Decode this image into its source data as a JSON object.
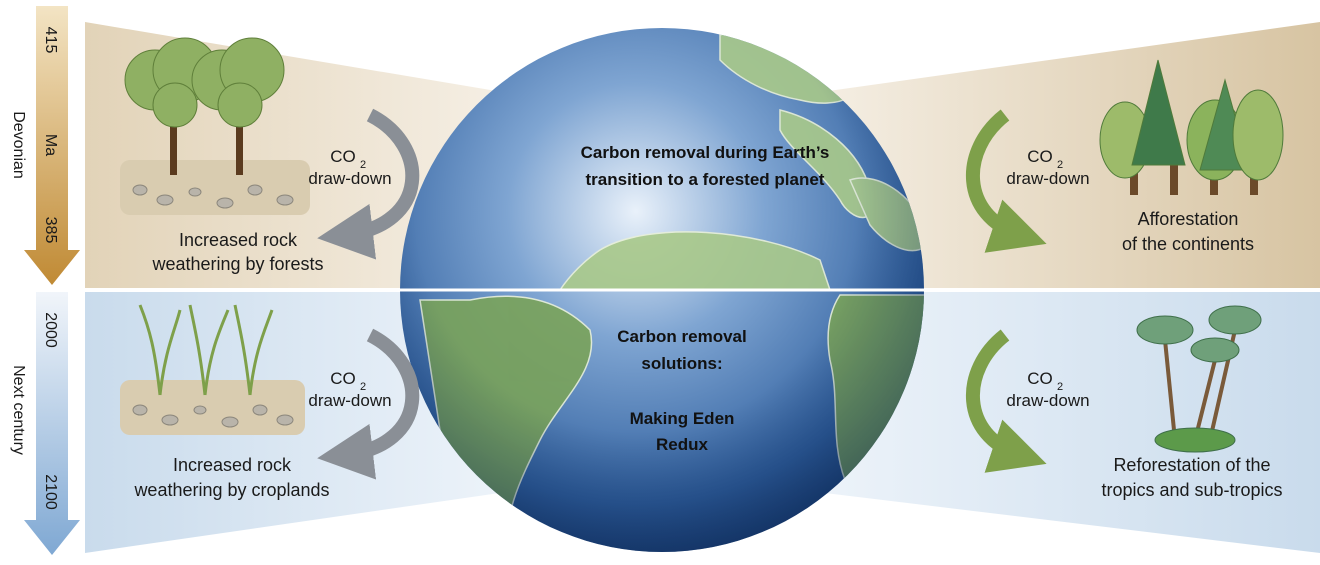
{
  "eras": [
    {
      "name": "Devonian",
      "start": "415",
      "unit": "Ma",
      "end": "385"
    },
    {
      "name": "Next century",
      "start": "2000",
      "end": "2100"
    }
  ],
  "panels": [
    {
      "center": [
        "Carbon removal during Earth’s",
        "transition to a forested planet"
      ],
      "left": {
        "flux": {
          "formula": "CO",
          "subscript": "2",
          "label": "draw-down"
        },
        "caption": [
          "Increased rock",
          "weathering by forests"
        ]
      },
      "right": {
        "flux": {
          "formula": "CO",
          "subscript": "2",
          "label": "draw-down"
        },
        "caption": [
          "Afforestation",
          "of the continents"
        ]
      }
    },
    {
      "center": [
        "Carbon removal",
        "solutions:",
        "Making Eden",
        "Redux"
      ],
      "left": {
        "flux": {
          "formula": "CO",
          "subscript": "2",
          "label": "draw-down"
        },
        "caption": [
          "Increased rock",
          "weathering by croplands"
        ]
      },
      "right": {
        "flux": {
          "formula": "CO",
          "subscript": "2",
          "label": "draw-down"
        },
        "caption": [
          "Reforestation of the",
          "tropics and sub-tropics"
        ]
      }
    }
  ]
}
